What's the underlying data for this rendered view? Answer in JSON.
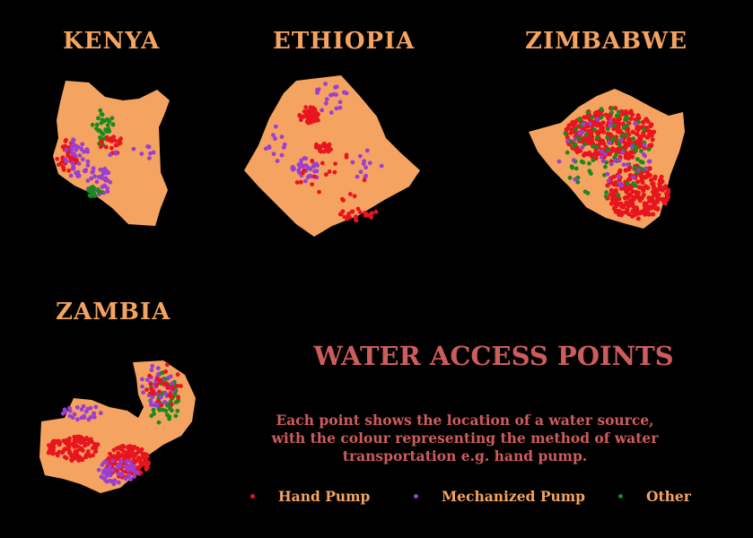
{
  "countries": {
    "kenya": "KENYA",
    "ethiopia": "ETHIOPIA",
    "zimbabwe": "ZIMBABWE",
    "zambia": "ZAMBIA"
  },
  "title": "WATER ACCESS POINTS",
  "subtitle": [
    "Each point shows the location of a water source,",
    "with the colour representing the method of water",
    "transportation e.g. hand pump."
  ],
  "legend": [
    {
      "label": "Hand Pump",
      "color": "#e8141e"
    },
    {
      "label": "Mechanized Pump",
      "color": "#9b3fd4"
    },
    {
      "label": "Other",
      "color": "#188a1e"
    }
  ],
  "colors": {
    "land": "#f4a460",
    "background": "#000000",
    "country_titles": "#f4a460",
    "main_title": "#cd5c5c"
  }
}
